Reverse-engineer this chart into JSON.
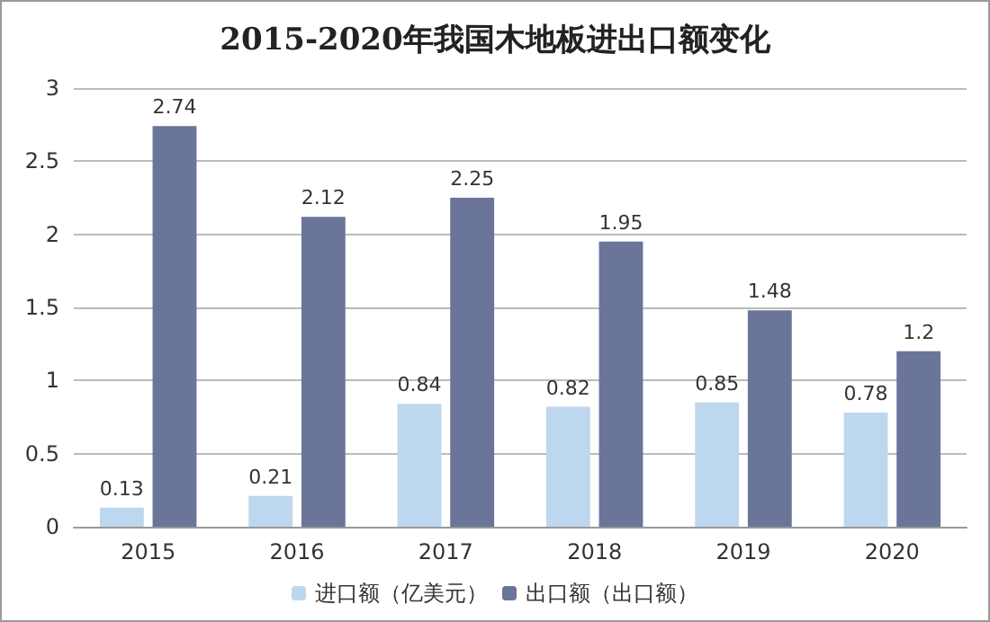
{
  "chart_data": {
    "type": "bar",
    "title": "2015-2020年我国木地板进出口额变化",
    "categories": [
      "2015",
      "2016",
      "2017",
      "2018",
      "2019",
      "2020"
    ],
    "series": [
      {
        "name": "进口额（亿美元）",
        "color": "#bdd7ee",
        "values": [
          0.13,
          0.21,
          0.84,
          0.82,
          0.85,
          0.78
        ]
      },
      {
        "name": "出口额（出口额）",
        "color": "#6b7499",
        "values": [
          2.74,
          2.12,
          2.25,
          1.95,
          1.48,
          1.2
        ]
      }
    ],
    "ylim": [
      0,
      3
    ],
    "yticks": [
      0,
      0.5,
      1,
      1.5,
      2,
      2.5,
      3
    ],
    "grid": "y",
    "legend": "bottom",
    "data_labels": true
  }
}
